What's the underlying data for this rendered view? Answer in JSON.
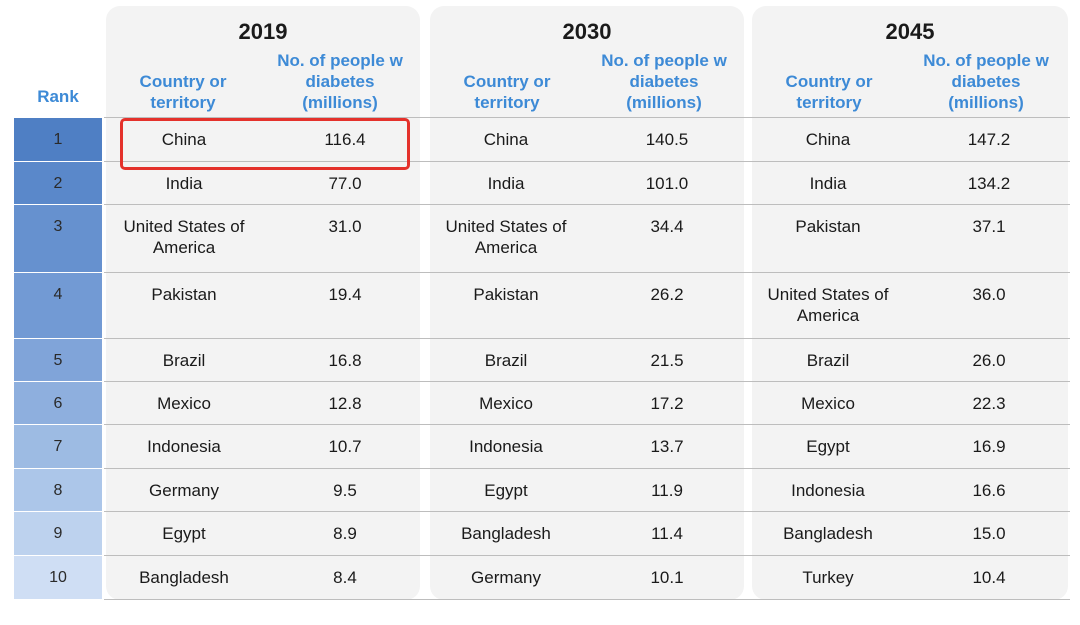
{
  "chart_data": {
    "type": "table",
    "rank_header": "Rank",
    "country_header": "Country or territory",
    "people_header": "No. of people w diabetes (millions)",
    "ranks": [
      "1",
      "2",
      "3",
      "4",
      "5",
      "6",
      "7",
      "8",
      "9",
      "10"
    ],
    "years": [
      {
        "year": "2019",
        "rows": [
          {
            "country": "China",
            "value": "116.4"
          },
          {
            "country": "India",
            "value": "77.0"
          },
          {
            "country": "United States of America",
            "value": "31.0"
          },
          {
            "country": "Pakistan",
            "value": "19.4"
          },
          {
            "country": "Brazil",
            "value": "16.8"
          },
          {
            "country": "Mexico",
            "value": "12.8"
          },
          {
            "country": "Indonesia",
            "value": "10.7"
          },
          {
            "country": "Germany",
            "value": "9.5"
          },
          {
            "country": "Egypt",
            "value": "8.9"
          },
          {
            "country": "Bangladesh",
            "value": "8.4"
          }
        ]
      },
      {
        "year": "2030",
        "rows": [
          {
            "country": "China",
            "value": "140.5"
          },
          {
            "country": "India",
            "value": "101.0"
          },
          {
            "country": "United States of America",
            "value": "34.4"
          },
          {
            "country": "Pakistan",
            "value": "26.2"
          },
          {
            "country": "Brazil",
            "value": "21.5"
          },
          {
            "country": "Mexico",
            "value": "17.2"
          },
          {
            "country": "Indonesia",
            "value": "13.7"
          },
          {
            "country": "Egypt",
            "value": "11.9"
          },
          {
            "country": "Bangladesh",
            "value": "11.4"
          },
          {
            "country": "Germany",
            "value": "10.1"
          }
        ]
      },
      {
        "year": "2045",
        "rows": [
          {
            "country": "China",
            "value": "147.2"
          },
          {
            "country": "India",
            "value": "134.2"
          },
          {
            "country": "Pakistan",
            "value": "37.1"
          },
          {
            "country": "United States of America",
            "value": "36.0"
          },
          {
            "country": "Brazil",
            "value": "26.0"
          },
          {
            "country": "Mexico",
            "value": "22.3"
          },
          {
            "country": "Egypt",
            "value": "16.9"
          },
          {
            "country": "Indonesia",
            "value": "16.6"
          },
          {
            "country": "Bangladesh",
            "value": "15.0"
          },
          {
            "country": "Turkey",
            "value": "10.4"
          }
        ]
      }
    ],
    "rank_colors": [
      "#4f7fc4",
      "#5a88ca",
      "#6691cf",
      "#729ad4",
      "#80a4d9",
      "#8eafde",
      "#9dbbe3",
      "#acc6e9",
      "#bdd2ee",
      "#cfdef4"
    ],
    "highlight_color": "#e4312b",
    "highlight": {
      "year": "2019",
      "rank": "1"
    }
  }
}
